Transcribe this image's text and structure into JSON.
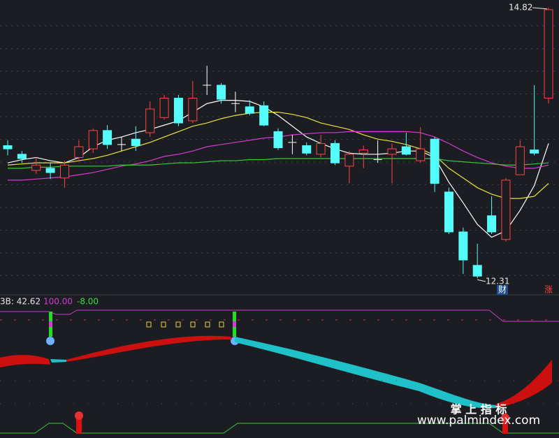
{
  "chart_data": {
    "type": "candlestick",
    "open": [
      13.54,
      13.46,
      13.31,
      13.33,
      13.24,
      13.43,
      13.51,
      13.68,
      13.55,
      13.6,
      13.66,
      13.8,
      13.98,
      13.77,
      14.1,
      14.1,
      13.93,
      13.9,
      13.91,
      13.67,
      13.57,
      13.54,
      13.46,
      13.56,
      13.35,
      13.47,
      13.41,
      13.46,
      13.53,
      13.4,
      13.6,
      13.11,
      12.74,
      12.43,
      12.89,
      12.67,
      13.27,
      13.5,
      13.98
    ],
    "high": [
      13.59,
      13.49,
      13.43,
      13.38,
      13.4,
      13.59,
      13.7,
      13.73,
      13.62,
      13.72,
      13.95,
      14.01,
      14.01,
      14.14,
      14.28,
      14.12,
      14.04,
      13.96,
      13.95,
      13.7,
      13.64,
      13.57,
      13.64,
      13.59,
      13.49,
      13.54,
      13.59,
      13.56,
      13.66,
      13.71,
      13.62,
      13.15,
      12.78,
      12.63,
      13.07,
      13.24,
      13.59,
      14.1,
      14.82
    ],
    "low": [
      13.45,
      13.38,
      13.28,
      13.23,
      13.15,
      13.41,
      13.47,
      13.51,
      13.49,
      13.49,
      13.62,
      13.78,
      13.72,
      13.75,
      14.01,
      13.93,
      13.85,
      13.82,
      13.72,
      13.5,
      13.46,
      13.45,
      13.43,
      13.36,
      13.19,
      13.33,
      13.38,
      13.19,
      13.45,
      13.38,
      13.11,
      12.72,
      12.35,
      12.31,
      12.72,
      12.65,
      13.27,
      13.45,
      13.93
    ],
    "close": [
      13.51,
      13.42,
      13.36,
      13.29,
      13.36,
      13.53,
      13.68,
      13.55,
      13.55,
      13.54,
      13.88,
      13.98,
      13.75,
      13.98,
      14.1,
      13.97,
      13.93,
      13.84,
      13.73,
      13.52,
      13.57,
      13.47,
      13.56,
      13.38,
      13.46,
      13.5,
      13.41,
      13.51,
      13.46,
      13.51,
      13.19,
      12.74,
      12.48,
      12.33,
      12.74,
      13.22,
      13.53,
      13.47,
      14.8
    ],
    "up_color": "#ff4444",
    "down_color": "#54fcfc",
    "flat_color": "#ffffff",
    "series": [
      {
        "color": "#ffffff",
        "values": [
          13.38,
          13.41,
          13.43,
          13.4,
          13.38,
          13.43,
          13.53,
          13.59,
          13.62,
          13.66,
          13.69,
          13.73,
          13.77,
          13.85,
          13.93,
          13.96,
          13.96,
          13.95,
          13.9,
          13.82,
          13.72,
          13.62,
          13.56,
          13.51,
          13.47,
          13.46,
          13.46,
          13.47,
          13.49,
          13.49,
          13.43,
          13.2,
          13.01,
          12.81,
          12.69,
          12.75,
          12.94,
          13.17,
          13.56
        ]
      },
      {
        "color": "#e8e43c",
        "values": [
          13.36,
          13.37,
          13.38,
          13.38,
          13.38,
          13.4,
          13.42,
          13.45,
          13.49,
          13.53,
          13.57,
          13.62,
          13.67,
          13.72,
          13.75,
          13.79,
          13.82,
          13.84,
          13.85,
          13.85,
          13.83,
          13.8,
          13.75,
          13.72,
          13.69,
          13.64,
          13.6,
          13.58,
          13.55,
          13.51,
          13.45,
          13.33,
          13.24,
          13.15,
          13.09,
          13.05,
          13.05,
          13.07,
          13.19
        ]
      },
      {
        "color": "#d23cd2",
        "values": [
          13.22,
          13.22,
          13.23,
          13.24,
          13.25,
          13.27,
          13.29,
          13.32,
          13.35,
          13.37,
          13.4,
          13.44,
          13.46,
          13.49,
          13.53,
          13.55,
          13.57,
          13.59,
          13.61,
          13.62,
          13.64,
          13.65,
          13.66,
          13.66,
          13.67,
          13.67,
          13.67,
          13.67,
          13.67,
          13.66,
          13.62,
          13.56,
          13.49,
          13.43,
          13.38,
          13.35,
          13.33,
          13.33,
          13.36
        ]
      },
      {
        "color": "#3cc83c",
        "values": [
          13.33,
          13.33,
          13.34,
          13.34,
          13.35,
          13.35,
          13.35,
          13.35,
          13.36,
          13.36,
          13.36,
          13.37,
          13.38,
          13.38,
          13.39,
          13.4,
          13.4,
          13.41,
          13.41,
          13.42,
          13.42,
          13.42,
          13.42,
          13.42,
          13.42,
          13.42,
          13.42,
          13.42,
          13.42,
          13.42,
          13.42,
          13.4,
          13.39,
          13.38,
          13.37,
          13.36,
          13.36,
          13.37,
          13.38
        ]
      }
    ],
    "ylim": [
      12.17,
      14.89
    ],
    "high_label": "14.82",
    "low_label": "12.31",
    "markers": [
      "财",
      "涨"
    ],
    "indicator": {
      "label": "3B: 42.62",
      "values": [
        "100.00",
        "-8.00"
      ]
    },
    "watermark": {
      "title": "掌 上 指 标",
      "url": "www.palmindex.com"
    }
  }
}
